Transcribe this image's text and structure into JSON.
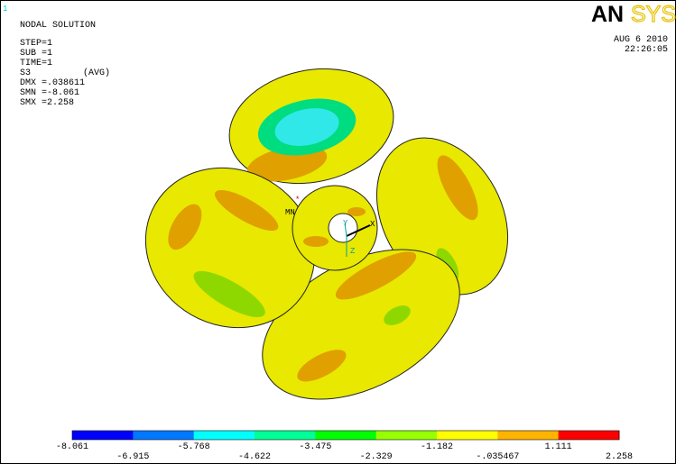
{
  "window_number": "1",
  "header": {
    "title": "NODAL SOLUTION",
    "lines": [
      "STEP=1",
      "SUB =1",
      "TIME=1"
    ],
    "result": "S3",
    "result_mode": "(AVG)",
    "stats": [
      "DMX =.038611",
      "SMN =-8.061",
      "SMX =2.258"
    ]
  },
  "logo": {
    "bold": "AN",
    "light": "SYS"
  },
  "timestamp": {
    "date": "AUG  6 2010",
    "time": "22:26:05"
  },
  "markers": {
    "min": "MN",
    "axes": [
      "Y",
      "X",
      "Z"
    ]
  },
  "legend": {
    "labels": [
      "-8.061",
      "-6.915",
      "-5.768",
      "-4.622",
      "-3.475",
      "-2.329",
      "-1.182",
      "-.035467",
      "1.111",
      "2.258"
    ],
    "colors": [
      "#0000ff",
      "#0078ff",
      "#00ffff",
      "#00ff96",
      "#00ff00",
      "#96ff00",
      "#ffff00",
      "#ffb400",
      "#ff0000"
    ]
  }
}
